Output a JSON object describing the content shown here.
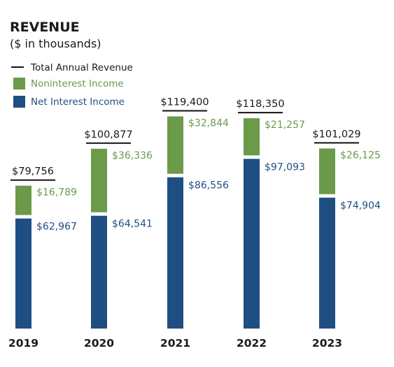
{
  "colors": {
    "net_interest": "#1f4e82",
    "noninterest": "#6a9a4a",
    "total_line": "#111111",
    "text": "#1a1a1a"
  },
  "chart_data": {
    "type": "bar",
    "stacked": true,
    "title": "REVENUE",
    "subtitle": "($ in thousands)",
    "legend": {
      "placement": "top-left",
      "items": [
        {
          "label": "Total Annual Revenue",
          "marker": "line",
          "color": "#111111"
        },
        {
          "label": "Noninterest Income",
          "marker": "square",
          "color": "#6a9a4a"
        },
        {
          "label": "Net Interest Income",
          "marker": "square",
          "color": "#1f4e82"
        }
      ]
    },
    "categories": [
      "2019",
      "2020",
      "2021",
      "2022",
      "2023"
    ],
    "series": [
      {
        "name": "Net Interest Income",
        "values": [
          62967,
          64541,
          86556,
          97093,
          74904
        ],
        "labels": [
          "$62,967",
          "$64,541",
          "$86,556",
          "$97,093",
          "$74,904"
        ]
      },
      {
        "name": "Noninterest Income",
        "values": [
          16789,
          36336,
          32844,
          21257,
          26125
        ],
        "labels": [
          "$16,789",
          "$36,336",
          "$32,844",
          "$21,257",
          "$26,125"
        ]
      }
    ],
    "totals": {
      "name": "Total Annual Revenue",
      "values": [
        79756,
        100877,
        119400,
        118350,
        101029
      ],
      "labels": [
        "$79,756",
        "$100,877",
        "$119,400",
        "$118,350",
        "$101,029"
      ]
    },
    "ylim": [
      0,
      120000
    ],
    "grid": false,
    "xlabel": "",
    "ylabel": ""
  }
}
